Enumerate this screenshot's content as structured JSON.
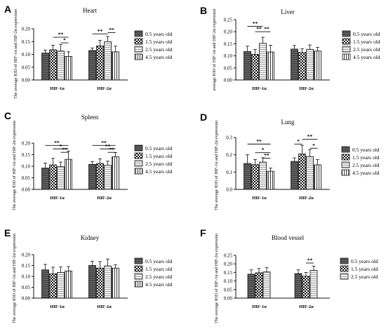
{
  "chart_data": [
    {
      "type": "bar",
      "panel": "A",
      "title": "Heart",
      "ylabel": "The average IOD of HIF-1α and HIF-2α expression",
      "categories": [
        "HIF-1α",
        "HIF-2α"
      ],
      "ylim": [
        0,
        0.2
      ],
      "yticks": [
        "0.00",
        "0.05",
        "0.10",
        "0.15",
        "0.20"
      ],
      "series": [
        {
          "name": "0.5 years old",
          "values": [
            0.105,
            0.115
          ],
          "errors": [
            0.012,
            0.01
          ]
        },
        {
          "name": "1.5 years old",
          "values": [
            0.118,
            0.133
          ],
          "errors": [
            0.018,
            0.022
          ]
        },
        {
          "name": "2.5 years old",
          "values": [
            0.113,
            0.15
          ],
          "errors": [
            0.025,
            0.02
          ]
        },
        {
          "name": "4.5 years old",
          "values": [
            0.092,
            0.11
          ],
          "errors": [
            0.018,
            0.022
          ]
        }
      ],
      "significance": [
        {
          "group": 0,
          "from": 1,
          "to": 3,
          "label": "**",
          "level": 0.167
        },
        {
          "group": 0,
          "from": 2,
          "to": 3,
          "label": "*",
          "level": 0.145
        },
        {
          "group": 1,
          "from": 0,
          "to": 2,
          "label": "**",
          "level": 0.18
        },
        {
          "group": 1,
          "from": 2,
          "to": 3,
          "label": "**",
          "level": 0.185
        }
      ]
    },
    {
      "type": "bar",
      "panel": "B",
      "title": "Liver",
      "ylabel": "average IOD of HIF-1α and HIF-2α expression",
      "categories": [
        "HIF-1α",
        "HIF-2α"
      ],
      "ylim": [
        0,
        0.25
      ],
      "yticks": [
        "0.00",
        "0.05",
        "0.10",
        "0.15",
        "0.20",
        "0.25"
      ],
      "series": [
        {
          "name": "0.5 years old",
          "values": [
            0.118,
            0.128
          ],
          "errors": [
            0.022,
            0.015
          ]
        },
        {
          "name": "1.5 years old",
          "values": [
            0.106,
            0.114
          ],
          "errors": [
            0.02,
            0.015
          ]
        },
        {
          "name": "2.5 years old",
          "values": [
            0.152,
            0.127
          ],
          "errors": [
            0.025,
            0.018
          ]
        },
        {
          "name": "4.5 years old",
          "values": [
            0.116,
            0.12
          ],
          "errors": [
            0.028,
            0.015
          ]
        }
      ],
      "significance": [
        {
          "group": 0,
          "from": 0,
          "to": 2,
          "label": "**",
          "level": 0.222
        },
        {
          "group": 0,
          "from": 1,
          "to": 2,
          "label": "**",
          "level": 0.2
        },
        {
          "group": 0,
          "from": 2,
          "to": 3,
          "label": "**",
          "level": 0.2
        }
      ]
    },
    {
      "type": "bar",
      "panel": "C",
      "title": "Spleen",
      "ylabel": "The average IOD of HIF-1α and HIF-2α expression",
      "categories": [
        "HIF-1α",
        "HIF-2α"
      ],
      "ylim": [
        0,
        0.2
      ],
      "yticks": [
        "0.00",
        "0.05",
        "0.10",
        "0.15",
        "0.20"
      ],
      "series": [
        {
          "name": "0.5 years old",
          "values": [
            0.092,
            0.108
          ],
          "errors": [
            0.022,
            0.012
          ]
        },
        {
          "name": "1.5 years old",
          "values": [
            0.106,
            0.112
          ],
          "errors": [
            0.028,
            0.02
          ]
        },
        {
          "name": "2.5 years old",
          "values": [
            0.098,
            0.104
          ],
          "errors": [
            0.02,
            0.018
          ]
        },
        {
          "name": "4.5 years old",
          "values": [
            0.13,
            0.141
          ],
          "errors": [
            0.035,
            0.018
          ]
        }
      ],
      "significance": [
        {
          "group": 0,
          "from": 0,
          "to": 3,
          "label": "**",
          "level": 0.19
        },
        {
          "group": 0,
          "from": 1,
          "to": 3,
          "label": "*",
          "level": 0.175
        },
        {
          "group": 0,
          "from": 2,
          "to": 3,
          "label": "**",
          "level": 0.16
        },
        {
          "group": 1,
          "from": 0,
          "to": 3,
          "label": "**",
          "level": 0.19
        },
        {
          "group": 1,
          "from": 1,
          "to": 3,
          "label": "**",
          "level": 0.175
        },
        {
          "group": 1,
          "from": 2,
          "to": 3,
          "label": "**",
          "level": 0.16
        }
      ]
    },
    {
      "type": "bar",
      "panel": "D",
      "title": "Lung",
      "ylabel": "The average IOD of HIF-1α and HIF-2α expression",
      "categories": [
        "HIF-1α",
        "HIF-2α"
      ],
      "ylim": [
        0,
        0.3
      ],
      "yticks": [
        "0.0",
        "0.1",
        "0.2",
        "0.3"
      ],
      "series": [
        {
          "name": "0.5 years old",
          "values": [
            0.15,
            0.162
          ],
          "errors": [
            0.05,
            0.02
          ]
        },
        {
          "name": "1.5 years old",
          "values": [
            0.143,
            0.205
          ],
          "errors": [
            0.03,
            0.05
          ]
        },
        {
          "name": "2.5 years old",
          "values": [
            0.158,
            0.19
          ],
          "errors": [
            0.025,
            0.04
          ]
        },
        {
          "name": "4.5 years old",
          "values": [
            0.105,
            0.142
          ],
          "errors": [
            0.018,
            0.03
          ]
        }
      ],
      "significance": [
        {
          "group": 0,
          "from": 0,
          "to": 3,
          "label": "**",
          "level": 0.262
        },
        {
          "group": 0,
          "from": 1,
          "to": 3,
          "label": "*",
          "level": 0.212
        },
        {
          "group": 0,
          "from": 2,
          "to": 3,
          "label": "**",
          "level": 0.18
        },
        {
          "group": 1,
          "from": 0,
          "to": 1,
          "label": "*",
          "level": 0.262
        },
        {
          "group": 1,
          "from": 1,
          "to": 3,
          "label": "**",
          "level": 0.29
        },
        {
          "group": 1,
          "from": 2,
          "to": 3,
          "label": "*",
          "level": 0.238
        }
      ]
    },
    {
      "type": "bar",
      "panel": "E",
      "title": "Kidney",
      "ylabel": "The average IOD of HIF-1α and HIF-2α expression",
      "categories": [
        "HIF-1α",
        "HIF-2α"
      ],
      "ylim": [
        0,
        0.2
      ],
      "yticks": [
        "0.00",
        "0.05",
        "0.10",
        "0.15",
        "0.20"
      ],
      "series": [
        {
          "name": "0.5 years old",
          "values": [
            0.13,
            0.15
          ],
          "errors": [
            0.025,
            0.02
          ]
        },
        {
          "name": "1.5 years old",
          "values": [
            0.112,
            0.138
          ],
          "errors": [
            0.03,
            0.03
          ]
        },
        {
          "name": "2.5 years old",
          "values": [
            0.118,
            0.148
          ],
          "errors": [
            0.025,
            0.032
          ]
        },
        {
          "name": "4.5 years old",
          "values": [
            0.125,
            0.138
          ],
          "errors": [
            0.02,
            0.015
          ]
        }
      ],
      "significance": []
    },
    {
      "type": "bar",
      "panel": "F",
      "title": "Blood vessel",
      "ylabel": "The average IOD of HIF-1α and HIF-2α expression",
      "categories": [
        "HIF-1α",
        "HIF-2α"
      ],
      "ylim": [
        0,
        0.25
      ],
      "yticks": [
        "0.00",
        "0.05",
        "0.10",
        "0.15",
        "0.20",
        "0.25"
      ],
      "series": [
        {
          "name": "0.5 years old",
          "values": [
            0.14,
            0.143
          ],
          "errors": [
            0.025,
            0.022
          ]
        },
        {
          "name": "1.5 years old",
          "values": [
            0.148,
            0.128
          ],
          "errors": [
            0.025,
            0.022
          ]
        },
        {
          "name": "2.5 years old",
          "values": [
            0.153,
            0.162
          ],
          "errors": [
            0.025,
            0.025
          ]
        }
      ],
      "significance": [
        {
          "group": 1,
          "from": 1,
          "to": 2,
          "label": "**",
          "level": 0.205
        }
      ]
    }
  ],
  "colors": {
    "bar_fill_0": "#6b6b6b",
    "bar_fill_1": "#ffffff",
    "bar_fill_2": "#d8d8d8",
    "bar_fill_3": "#ffffff",
    "ink": "#111111"
  }
}
